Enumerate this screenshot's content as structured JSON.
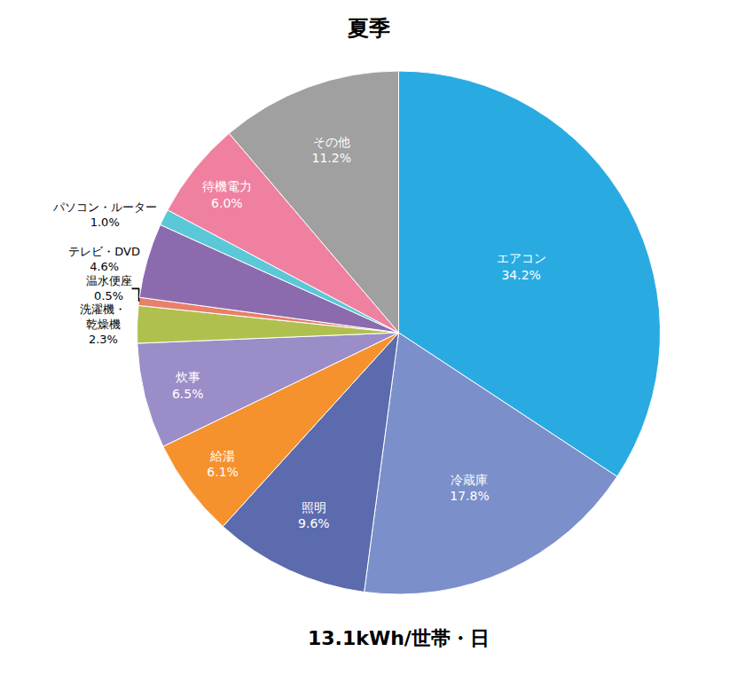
{
  "chart_data": {
    "type": "pie",
    "title": "夏季",
    "subtitle": "13.1kWh/世帯・日",
    "categories": [
      "エアコン",
      "冷蔵庫",
      "照明",
      "給湯",
      "炊事",
      "洗濯機・\n乾燥機",
      "温水便座",
      "テレビ・DVD",
      "パソコン・ルーター",
      "待機電力",
      "その他"
    ],
    "values": [
      34.2,
      17.8,
      9.6,
      6.1,
      6.5,
      2.3,
      0.5,
      4.6,
      1.0,
      6.0,
      11.2
    ],
    "value_labels": [
      "34.2%",
      "17.8%",
      "9.6%",
      "6.1%",
      "6.5%",
      "2.3%",
      "0.5%",
      "4.6%",
      "1.0%",
      "6.0%",
      "11.2%"
    ],
    "colors": [
      "#29ABE2",
      "#7B8FCA",
      "#5B6BAE",
      "#F5922E",
      "#9B8DC8",
      "#B0C04F",
      "#E8806A",
      "#8B6BAE",
      "#5BC8D8",
      "#F080A0",
      "#A0A0A0"
    ],
    "data_labels": true
  }
}
